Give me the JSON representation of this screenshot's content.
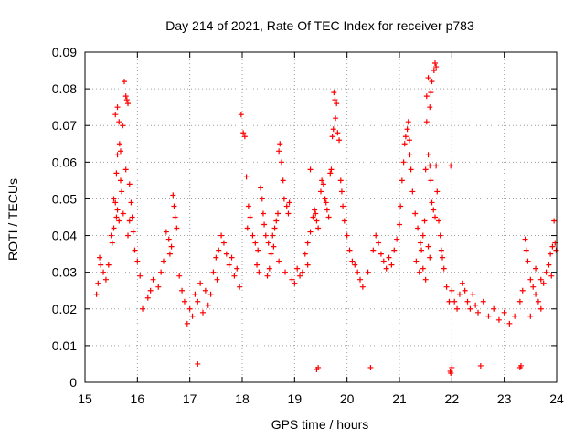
{
  "chart_data": {
    "type": "scatter",
    "title": "Day 214 of 2021, Rate Of TEC Index for receiver p783",
    "xlabel": "GPS time / hours",
    "ylabel": "ROTI / TECUs",
    "xlim": [
      15,
      24
    ],
    "ylim": [
      0,
      0.09
    ],
    "x_ticks": [
      "15",
      "16",
      "17",
      "18",
      "19",
      "20",
      "21",
      "22",
      "23",
      "24"
    ],
    "y_ticks": [
      "0",
      "0.01",
      "0.02",
      "0.03",
      "0.04",
      "0.05",
      "0.06",
      "0.07",
      "0.08",
      "0.09"
    ],
    "grid": true,
    "marker": "+",
    "color": "#ff0000",
    "series": [
      {
        "values": [
          [
            15.58,
            0.073
          ],
          [
            15.62,
            0.075
          ],
          [
            15.65,
            0.071
          ],
          [
            15.66,
            0.065
          ],
          [
            15.68,
            0.063
          ],
          [
            15.72,
            0.07
          ],
          [
            15.75,
            0.082
          ],
          [
            15.78,
            0.078
          ],
          [
            15.8,
            0.077
          ],
          [
            15.82,
            0.076
          ],
          [
            15.55,
            0.05
          ],
          [
            15.58,
            0.049
          ],
          [
            15.62,
            0.047
          ],
          [
            15.65,
            0.044
          ],
          [
            15.5,
            0.04
          ],
          [
            15.52,
            0.038
          ],
          [
            15.55,
            0.042
          ],
          [
            15.6,
            0.045
          ],
          [
            15.7,
            0.052
          ],
          [
            15.73,
            0.046
          ],
          [
            15.78,
            0.058
          ],
          [
            15.85,
            0.054
          ],
          [
            15.88,
            0.049
          ],
          [
            15.9,
            0.045
          ],
          [
            15.92,
            0.041
          ],
          [
            15.95,
            0.036
          ],
          [
            16.0,
            0.033
          ],
          [
            16.05,
            0.029
          ],
          [
            15.85,
            0.044
          ],
          [
            15.82,
            0.04
          ],
          [
            15.6,
            0.057
          ],
          [
            15.62,
            0.062
          ],
          [
            15.68,
            0.055
          ],
          [
            15.28,
            0.034
          ],
          [
            15.3,
            0.032
          ],
          [
            15.35,
            0.03
          ],
          [
            15.4,
            0.028
          ],
          [
            15.45,
            0.032
          ],
          [
            15.22,
            0.024
          ],
          [
            15.25,
            0.027
          ],
          [
            16.55,
            0.041
          ],
          [
            16.6,
            0.039
          ],
          [
            16.65,
            0.037
          ],
          [
            16.68,
            0.051
          ],
          [
            16.7,
            0.048
          ],
          [
            16.72,
            0.045
          ],
          [
            16.75,
            0.042
          ],
          [
            16.62,
            0.035
          ],
          [
            16.5,
            0.033
          ],
          [
            16.45,
            0.03
          ],
          [
            16.3,
            0.028
          ],
          [
            16.25,
            0.025
          ],
          [
            16.2,
            0.023
          ],
          [
            16.1,
            0.02
          ],
          [
            16.4,
            0.026
          ],
          [
            16.8,
            0.029
          ],
          [
            16.85,
            0.025
          ],
          [
            16.9,
            0.022
          ],
          [
            17.0,
            0.02
          ],
          [
            17.1,
            0.024
          ],
          [
            17.2,
            0.027
          ],
          [
            17.3,
            0.025
          ],
          [
            17.45,
            0.03
          ],
          [
            17.5,
            0.034
          ],
          [
            17.55,
            0.036
          ],
          [
            17.6,
            0.04
          ],
          [
            17.65,
            0.038
          ],
          [
            17.7,
            0.035
          ],
          [
            17.75,
            0.032
          ],
          [
            17.8,
            0.034
          ],
          [
            17.85,
            0.029
          ],
          [
            17.9,
            0.031
          ],
          [
            17.95,
            0.026
          ],
          [
            17.52,
            0.028
          ],
          [
            17.4,
            0.024
          ],
          [
            17.35,
            0.021
          ],
          [
            17.25,
            0.019
          ],
          [
            17.15,
            0.022
          ],
          [
            17.05,
            0.018
          ],
          [
            16.95,
            0.016
          ],
          [
            17.98,
            0.073
          ],
          [
            18.02,
            0.068
          ],
          [
            18.05,
            0.067
          ],
          [
            18.08,
            0.056
          ],
          [
            18.12,
            0.048
          ],
          [
            18.15,
            0.045
          ],
          [
            18.1,
            0.042
          ],
          [
            18.2,
            0.04
          ],
          [
            18.25,
            0.038
          ],
          [
            18.3,
            0.036
          ],
          [
            18.35,
            0.053
          ],
          [
            18.38,
            0.05
          ],
          [
            18.4,
            0.046
          ],
          [
            18.42,
            0.043
          ],
          [
            18.45,
            0.04
          ],
          [
            18.5,
            0.038
          ],
          [
            18.55,
            0.035
          ],
          [
            18.6,
            0.037
          ],
          [
            18.65,
            0.044
          ],
          [
            18.68,
            0.046
          ],
          [
            18.7,
            0.063
          ],
          [
            18.72,
            0.065
          ],
          [
            18.75,
            0.06
          ],
          [
            18.78,
            0.055
          ],
          [
            18.8,
            0.05
          ],
          [
            18.85,
            0.048
          ],
          [
            18.88,
            0.046
          ],
          [
            18.9,
            0.049
          ],
          [
            18.62,
            0.042
          ],
          [
            18.58,
            0.04
          ],
          [
            18.28,
            0.032
          ],
          [
            18.32,
            0.03
          ],
          [
            18.48,
            0.029
          ],
          [
            18.52,
            0.031
          ],
          [
            18.7,
            0.033
          ],
          [
            18.82,
            0.03
          ],
          [
            18.95,
            0.028
          ],
          [
            19.0,
            0.027
          ],
          [
            19.05,
            0.031
          ],
          [
            19.1,
            0.029
          ],
          [
            19.2,
            0.035
          ],
          [
            19.25,
            0.038
          ],
          [
            19.3,
            0.041
          ],
          [
            19.35,
            0.045
          ],
          [
            19.38,
            0.047
          ],
          [
            19.4,
            0.046
          ],
          [
            19.42,
            0.044
          ],
          [
            19.45,
            0.042
          ],
          [
            19.5,
            0.052
          ],
          [
            19.52,
            0.055
          ],
          [
            19.55,
            0.054
          ],
          [
            19.58,
            0.05
          ],
          [
            19.6,
            0.049
          ],
          [
            19.62,
            0.047
          ],
          [
            19.65,
            0.045
          ],
          [
            19.68,
            0.057
          ],
          [
            19.7,
            0.058
          ],
          [
            19.72,
            0.067
          ],
          [
            19.74,
            0.069
          ],
          [
            19.75,
            0.079
          ],
          [
            19.77,
            0.077
          ],
          [
            19.78,
            0.072
          ],
          [
            19.8,
            0.076
          ],
          [
            19.82,
            0.068
          ],
          [
            19.85,
            0.066
          ],
          [
            19.88,
            0.055
          ],
          [
            19.9,
            0.052
          ],
          [
            19.92,
            0.048
          ],
          [
            19.95,
            0.044
          ],
          [
            20.0,
            0.04
          ],
          [
            20.05,
            0.036
          ],
          [
            20.1,
            0.033
          ],
          [
            19.3,
            0.058
          ],
          [
            19.25,
            0.032
          ],
          [
            19.15,
            0.03
          ],
          [
            20.15,
            0.032
          ],
          [
            20.2,
            0.03
          ],
          [
            20.25,
            0.028
          ],
          [
            20.3,
            0.026
          ],
          [
            20.4,
            0.03
          ],
          [
            20.5,
            0.036
          ],
          [
            20.55,
            0.04
          ],
          [
            20.6,
            0.038
          ],
          [
            20.65,
            0.035
          ],
          [
            20.7,
            0.033
          ],
          [
            20.75,
            0.031
          ],
          [
            20.8,
            0.034
          ],
          [
            20.85,
            0.032
          ],
          [
            20.9,
            0.036
          ],
          [
            20.95,
            0.039
          ],
          [
            21.0,
            0.043
          ],
          [
            21.02,
            0.048
          ],
          [
            21.05,
            0.055
          ],
          [
            21.08,
            0.06
          ],
          [
            21.1,
            0.065
          ],
          [
            21.12,
            0.067
          ],
          [
            21.15,
            0.069
          ],
          [
            21.17,
            0.071
          ],
          [
            21.19,
            0.066
          ],
          [
            21.2,
            0.062
          ],
          [
            21.22,
            0.058
          ],
          [
            21.25,
            0.052
          ],
          [
            21.3,
            0.046
          ],
          [
            21.35,
            0.042
          ],
          [
            21.4,
            0.038
          ],
          [
            21.42,
            0.036
          ],
          [
            21.45,
            0.04
          ],
          [
            21.48,
            0.044
          ],
          [
            21.5,
            0.058
          ],
          [
            21.52,
            0.071
          ],
          [
            21.55,
            0.062
          ],
          [
            21.58,
            0.059
          ],
          [
            21.6,
            0.055
          ],
          [
            21.62,
            0.049
          ],
          [
            21.65,
            0.047
          ],
          [
            21.68,
            0.045
          ],
          [
            21.7,
            0.059
          ],
          [
            21.72,
            0.052
          ],
          [
            21.75,
            0.044
          ],
          [
            21.78,
            0.04
          ],
          [
            21.8,
            0.036
          ],
          [
            21.82,
            0.034
          ],
          [
            21.85,
            0.031
          ],
          [
            21.9,
            0.026
          ],
          [
            21.95,
            0.022
          ],
          [
            21.98,
            0.059
          ],
          [
            21.45,
            0.031
          ],
          [
            21.5,
            0.028
          ],
          [
            21.55,
            0.083
          ],
          [
            21.58,
            0.075
          ],
          [
            21.62,
            0.082
          ],
          [
            21.66,
            0.085
          ],
          [
            21.68,
            0.087
          ],
          [
            21.7,
            0.086
          ],
          [
            21.52,
            0.078
          ],
          [
            21.6,
            0.079
          ],
          [
            21.55,
            0.037
          ],
          [
            21.58,
            0.034
          ],
          [
            21.38,
            0.03
          ],
          [
            21.32,
            0.033
          ],
          [
            22.0,
            0.025
          ],
          [
            22.05,
            0.022
          ],
          [
            22.1,
            0.02
          ],
          [
            22.15,
            0.024
          ],
          [
            22.2,
            0.027
          ],
          [
            22.25,
            0.025
          ],
          [
            22.3,
            0.022
          ],
          [
            22.35,
            0.02
          ],
          [
            22.4,
            0.024
          ],
          [
            22.45,
            0.021
          ],
          [
            22.5,
            0.019
          ],
          [
            22.6,
            0.022
          ],
          [
            22.7,
            0.018
          ],
          [
            22.8,
            0.02
          ],
          [
            22.9,
            0.017
          ],
          [
            23.0,
            0.019
          ],
          [
            23.1,
            0.016
          ],
          [
            23.2,
            0.018
          ],
          [
            23.3,
            0.022
          ],
          [
            23.35,
            0.025
          ],
          [
            23.4,
            0.039
          ],
          [
            23.42,
            0.036
          ],
          [
            23.45,
            0.033
          ],
          [
            23.5,
            0.028
          ],
          [
            23.55,
            0.026
          ],
          [
            23.6,
            0.024
          ],
          [
            23.65,
            0.022
          ],
          [
            23.7,
            0.02
          ],
          [
            23.75,
            0.027
          ],
          [
            23.8,
            0.03
          ],
          [
            23.85,
            0.032
          ],
          [
            23.88,
            0.035
          ],
          [
            23.9,
            0.029
          ],
          [
            23.92,
            0.037
          ],
          [
            23.95,
            0.044
          ],
          [
            23.97,
            0.038
          ],
          [
            23.99,
            0.036
          ],
          [
            23.7,
            0.028
          ],
          [
            23.6,
            0.031
          ],
          [
            23.5,
            0.018
          ],
          [
            21.97,
            0.003
          ],
          [
            21.98,
            0.0025
          ],
          [
            22.0,
            0.004
          ],
          [
            23.3,
            0.004
          ],
          [
            23.32,
            0.0045
          ],
          [
            22.55,
            0.0045
          ],
          [
            19.42,
            0.0035
          ],
          [
            19.45,
            0.004
          ],
          [
            17.15,
            0.005
          ],
          [
            20.45,
            0.004
          ]
        ]
      }
    ]
  }
}
